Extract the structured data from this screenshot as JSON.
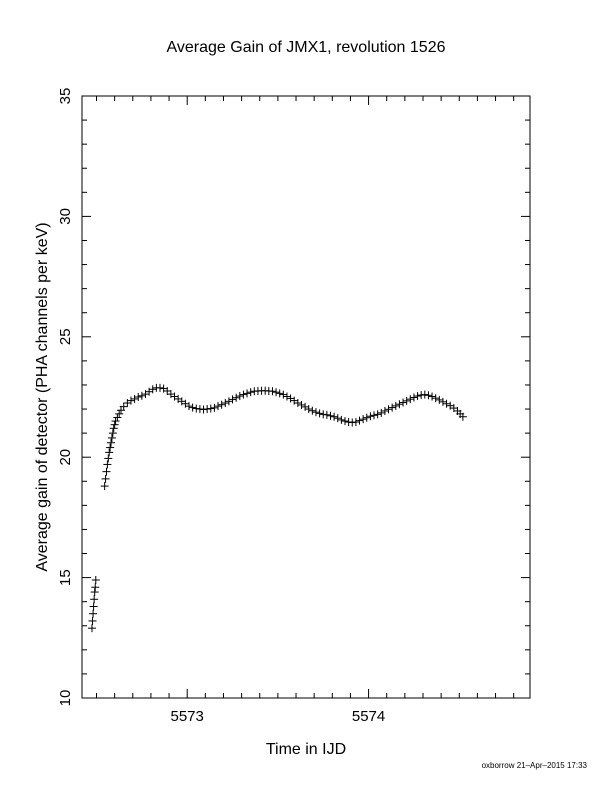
{
  "chart_data": {
    "type": "scatter",
    "title": "Average Gain of JMX1, revolution 1526",
    "xlabel": "Time in IJD",
    "ylabel": "Average gain of detector (PHA channels per keV)",
    "xlim": [
      5572.42,
      5574.89
    ],
    "ylim": [
      10,
      35
    ],
    "x_ticks": [
      5573,
      5574
    ],
    "x_tick_labels": [
      "5573",
      "5574"
    ],
    "y_ticks": [
      10,
      15,
      20,
      25,
      30,
      35
    ],
    "y_tick_labels": [
      "10",
      "15",
      "20",
      "25",
      "30",
      "35"
    ],
    "marker": "plus",
    "grid": false,
    "legend": "none",
    "series": [
      {
        "points": [
          [
            5572.475,
            12.9
          ],
          [
            5572.478,
            13.2
          ],
          [
            5572.481,
            13.5
          ],
          [
            5572.484,
            13.8
          ],
          [
            5572.487,
            14.1
          ],
          [
            5572.49,
            14.4
          ],
          [
            5572.493,
            14.6
          ],
          [
            5572.496,
            14.9
          ],
          [
            5572.545,
            18.8
          ],
          [
            5572.55,
            19.1
          ],
          [
            5572.555,
            19.4
          ],
          [
            5572.56,
            19.7
          ],
          [
            5572.565,
            19.95
          ],
          [
            5572.57,
            20.2
          ],
          [
            5572.575,
            20.4
          ],
          [
            5572.58,
            20.6
          ],
          [
            5572.585,
            20.8
          ],
          [
            5572.59,
            21.0
          ],
          [
            5572.595,
            21.2
          ],
          [
            5572.6,
            21.35
          ],
          [
            5572.605,
            21.5
          ],
          [
            5572.615,
            21.65
          ],
          [
            5572.625,
            21.8
          ],
          [
            5572.635,
            21.95
          ],
          [
            5572.65,
            22.1
          ],
          [
            5572.67,
            22.25
          ],
          [
            5572.69,
            22.35
          ],
          [
            5572.71,
            22.42
          ],
          [
            5572.73,
            22.5
          ],
          [
            5572.75,
            22.55
          ],
          [
            5572.77,
            22.62
          ],
          [
            5572.79,
            22.72
          ],
          [
            5572.81,
            22.82
          ],
          [
            5572.83,
            22.88
          ],
          [
            5572.85,
            22.88
          ],
          [
            5572.87,
            22.85
          ],
          [
            5572.89,
            22.75
          ],
          [
            5572.91,
            22.62
          ],
          [
            5572.93,
            22.52
          ],
          [
            5572.95,
            22.42
          ],
          [
            5572.97,
            22.32
          ],
          [
            5572.99,
            22.22
          ],
          [
            5573.01,
            22.12
          ],
          [
            5573.03,
            22.06
          ],
          [
            5573.05,
            22.02
          ],
          [
            5573.07,
            22.0
          ],
          [
            5573.09,
            21.98
          ],
          [
            5573.11,
            22.0
          ],
          [
            5573.13,
            22.02
          ],
          [
            5573.15,
            22.05
          ],
          [
            5573.17,
            22.12
          ],
          [
            5573.19,
            22.18
          ],
          [
            5573.21,
            22.25
          ],
          [
            5573.23,
            22.32
          ],
          [
            5573.25,
            22.4
          ],
          [
            5573.27,
            22.47
          ],
          [
            5573.29,
            22.54
          ],
          [
            5573.31,
            22.6
          ],
          [
            5573.33,
            22.65
          ],
          [
            5573.35,
            22.7
          ],
          [
            5573.37,
            22.74
          ],
          [
            5573.39,
            22.75
          ],
          [
            5573.41,
            22.76
          ],
          [
            5573.43,
            22.76
          ],
          [
            5573.45,
            22.75
          ],
          [
            5573.47,
            22.74
          ],
          [
            5573.49,
            22.7
          ],
          [
            5573.51,
            22.65
          ],
          [
            5573.53,
            22.6
          ],
          [
            5573.55,
            22.52
          ],
          [
            5573.57,
            22.44
          ],
          [
            5573.59,
            22.35
          ],
          [
            5573.61,
            22.25
          ],
          [
            5573.63,
            22.17
          ],
          [
            5573.65,
            22.09
          ],
          [
            5573.67,
            22.0
          ],
          [
            5573.69,
            21.93
          ],
          [
            5573.71,
            21.87
          ],
          [
            5573.73,
            21.82
          ],
          [
            5573.75,
            21.78
          ],
          [
            5573.77,
            21.76
          ],
          [
            5573.79,
            21.72
          ],
          [
            5573.81,
            21.68
          ],
          [
            5573.83,
            21.62
          ],
          [
            5573.85,
            21.55
          ],
          [
            5573.87,
            21.5
          ],
          [
            5573.89,
            21.46
          ],
          [
            5573.91,
            21.44
          ],
          [
            5573.93,
            21.46
          ],
          [
            5573.95,
            21.52
          ],
          [
            5573.97,
            21.58
          ],
          [
            5573.99,
            21.64
          ],
          [
            5574.01,
            21.7
          ],
          [
            5574.03,
            21.74
          ],
          [
            5574.05,
            21.78
          ],
          [
            5574.07,
            21.84
          ],
          [
            5574.09,
            21.92
          ],
          [
            5574.11,
            21.99
          ],
          [
            5574.13,
            22.06
          ],
          [
            5574.15,
            22.13
          ],
          [
            5574.17,
            22.2
          ],
          [
            5574.19,
            22.27
          ],
          [
            5574.21,
            22.34
          ],
          [
            5574.23,
            22.41
          ],
          [
            5574.25,
            22.48
          ],
          [
            5574.27,
            22.54
          ],
          [
            5574.29,
            22.58
          ],
          [
            5574.31,
            22.6
          ],
          [
            5574.33,
            22.57
          ],
          [
            5574.35,
            22.52
          ],
          [
            5574.37,
            22.45
          ],
          [
            5574.39,
            22.38
          ],
          [
            5574.41,
            22.3
          ],
          [
            5574.43,
            22.22
          ],
          [
            5574.45,
            22.14
          ],
          [
            5574.47,
            22.04
          ],
          [
            5574.49,
            21.92
          ],
          [
            5574.505,
            21.8
          ],
          [
            5574.52,
            21.68
          ]
        ]
      }
    ]
  },
  "footer": {
    "credit": "oxborrow 21–Apr–2015 17:33"
  }
}
